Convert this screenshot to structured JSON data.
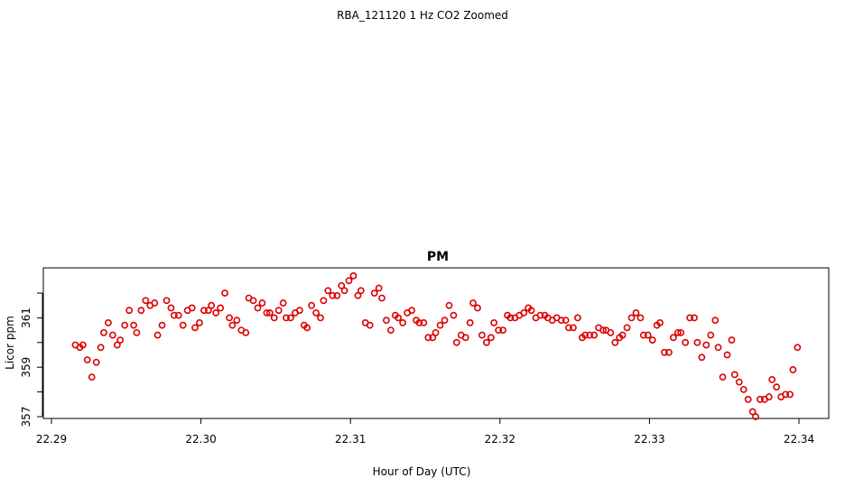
{
  "figure": {
    "main_title": "RBA_121120  1 Hz CO2 Zoomed"
  },
  "chart_data": {
    "type": "scatter",
    "title": "PM",
    "xlabel": "Hour of Day (UTC)",
    "ylabel": "Licor ppm",
    "xlim": [
      22.29,
      22.3405
    ],
    "ylim": [
      357.0,
      362.8
    ],
    "x_ticks": [
      22.29,
      22.3,
      22.31,
      22.32,
      22.33,
      22.34
    ],
    "x_tick_labels": [
      "22.29",
      "22.30",
      "22.31",
      "22.32",
      "22.33",
      "22.34"
    ],
    "y_ticks": [
      357,
      358,
      359,
      360,
      361,
      362
    ],
    "y_tick_labels": [
      "357",
      "",
      "359",
      "",
      "361",
      ""
    ],
    "marker_color": "#dd0000",
    "series": [
      {
        "x": [
          22.2916,
          22.2919,
          22.2921,
          22.2924,
          22.2927,
          22.293,
          22.2933,
          22.2935,
          22.2938,
          22.2941,
          22.2944,
          22.2946,
          22.2949,
          22.2952,
          22.2955,
          22.2957,
          22.296,
          22.2963,
          22.2966,
          22.2969,
          22.2971,
          22.2974,
          22.2977,
          22.298,
          22.2982,
          22.2985,
          22.2988,
          22.2991,
          22.2994,
          22.2996,
          22.2999,
          22.3002,
          22.3005,
          22.3007,
          22.301,
          22.3013,
          22.3016,
          22.3019,
          22.3021,
          22.3024,
          22.3027,
          22.303,
          22.3032,
          22.3035,
          22.3038,
          22.3041,
          22.3044,
          22.3046,
          22.3049,
          22.3052,
          22.3055,
          22.3057,
          22.306,
          22.3063,
          22.3066,
          22.3069,
          22.3071,
          22.3074,
          22.3077,
          22.308,
          22.3082,
          22.3085,
          22.3088,
          22.3091,
          22.3094,
          22.3096,
          22.3099,
          22.3102,
          22.3105,
          22.3107,
          22.311,
          22.3113,
          22.3116,
          22.3119,
          22.3121,
          22.3124,
          22.3127,
          22.313,
          22.3132,
          22.3135,
          22.3138,
          22.3141,
          22.3144,
          22.3146,
          22.3149,
          22.3152,
          22.3155,
          22.3157,
          22.316,
          22.3163,
          22.3166,
          22.3169,
          22.3171,
          22.3174,
          22.3177,
          22.318,
          22.3182,
          22.3185,
          22.3188,
          22.3191,
          22.3194,
          22.3196,
          22.3199,
          22.3202,
          22.3205,
          22.3207,
          22.321,
          22.3213,
          22.3216,
          22.3219,
          22.3221,
          22.3224,
          22.3227,
          22.323,
          22.3232,
          22.3235,
          22.3238,
          22.3241,
          22.3244,
          22.3246,
          22.3249,
          22.3252,
          22.3255,
          22.3257,
          22.326,
          22.3263,
          22.3266,
          22.3269,
          22.3271,
          22.3274,
          22.3277,
          22.328,
          22.3282,
          22.3285,
          22.3288,
          22.3291,
          22.3294,
          22.3296,
          22.3299,
          22.3302,
          22.3305,
          22.3307,
          22.331,
          22.3313,
          22.3316,
          22.3319,
          22.3321,
          22.3324,
          22.3327,
          22.333,
          22.3332,
          22.3335,
          22.3338,
          22.3341,
          22.3344,
          22.3346,
          22.3349,
          22.3352,
          22.3355,
          22.3357,
          22.336,
          22.3363,
          22.3366,
          22.3369,
          22.3371,
          22.3374,
          22.3377,
          22.338,
          22.3382,
          22.3385,
          22.3388,
          22.3391,
          22.3394,
          22.3396,
          22.3399
        ],
        "y": [
          359.9,
          359.8,
          359.9,
          359.3,
          358.6,
          359.2,
          359.8,
          360.4,
          360.8,
          360.3,
          359.9,
          360.1,
          360.7,
          361.3,
          360.7,
          360.4,
          361.3,
          361.7,
          361.5,
          361.6,
          360.3,
          360.7,
          361.7,
          361.4,
          361.1,
          361.1,
          360.7,
          361.3,
          361.4,
          360.6,
          360.8,
          361.3,
          361.3,
          361.5,
          361.2,
          361.4,
          362.0,
          361.0,
          360.7,
          360.9,
          360.5,
          360.4,
          361.8,
          361.7,
          361.4,
          361.6,
          361.2,
          361.2,
          361.0,
          361.3,
          361.6,
          361.0,
          361.0,
          361.2,
          361.3,
          360.7,
          360.6,
          361.5,
          361.2,
          361.0,
          361.7,
          362.1,
          361.9,
          361.9,
          362.3,
          362.1,
          362.5,
          362.7,
          361.9,
          362.1,
          360.8,
          360.7,
          362.0,
          362.2,
          361.8,
          360.9,
          360.5,
          361.1,
          361.0,
          360.8,
          361.2,
          361.3,
          360.9,
          360.8,
          360.8,
          360.2,
          360.2,
          360.4,
          360.7,
          360.9,
          361.5,
          361.1,
          360.0,
          360.3,
          360.2,
          360.8,
          361.6,
          361.4,
          360.3,
          360.0,
          360.2,
          360.8,
          360.5,
          360.5,
          361.1,
          361.0,
          361.0,
          361.1,
          361.2,
          361.4,
          361.3,
          361.0,
          361.1,
          361.1,
          361.0,
          360.9,
          361.0,
          360.9,
          360.9,
          360.6,
          360.6,
          361.0,
          360.2,
          360.3,
          360.3,
          360.3,
          360.6,
          360.5,
          360.5,
          360.4,
          360.0,
          360.2,
          360.3,
          360.6,
          361.0,
          361.2,
          361.0,
          360.3,
          360.3,
          360.1,
          360.7,
          360.8,
          359.6,
          359.6,
          360.2,
          360.4,
          360.4,
          360.0,
          361.0,
          361.0,
          360.0,
          359.4,
          359.9,
          360.3,
          360.9,
          359.8,
          358.6,
          359.5,
          360.1,
          358.7,
          358.4,
          358.1,
          357.7,
          357.2,
          357.0,
          357.7,
          357.7,
          357.8,
          358.5,
          358.2,
          357.8,
          357.9,
          357.9,
          358.9,
          359.8
        ]
      }
    ]
  }
}
